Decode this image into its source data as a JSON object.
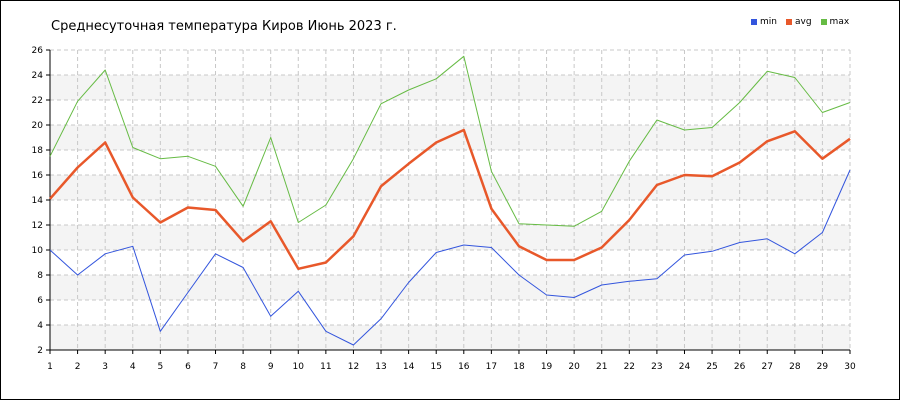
{
  "chart_data": {
    "type": "line",
    "title": "Среднесуточная температура Киров  Июнь 2023 г.",
    "xlabel": "",
    "ylabel": "",
    "ylim": [
      2,
      26
    ],
    "yticks": [
      2,
      4,
      6,
      8,
      10,
      12,
      14,
      16,
      18,
      20,
      22,
      24,
      26
    ],
    "x": [
      1,
      2,
      3,
      4,
      5,
      6,
      7,
      8,
      9,
      10,
      11,
      12,
      13,
      14,
      15,
      16,
      17,
      18,
      19,
      20,
      21,
      22,
      23,
      24,
      25,
      26,
      27,
      28,
      29,
      30
    ],
    "grid": true,
    "legend": "top-right",
    "series": [
      {
        "name": "min",
        "color": "#3355dd",
        "values": [
          10.0,
          8.0,
          9.7,
          10.3,
          3.5,
          6.6,
          9.7,
          8.6,
          4.7,
          6.7,
          3.5,
          2.4,
          4.5,
          7.4,
          9.8,
          10.4,
          10.2,
          8.0,
          6.4,
          6.2,
          7.2,
          7.5,
          7.7,
          9.6,
          9.9,
          10.6,
          10.9,
          9.7,
          11.4,
          16.4
        ]
      },
      {
        "name": "avg",
        "color": "#e8582a",
        "values": [
          14.1,
          16.6,
          18.6,
          14.2,
          12.2,
          13.4,
          13.2,
          10.7,
          12.3,
          8.5,
          9.0,
          11.1,
          15.1,
          16.9,
          18.6,
          19.6,
          13.3,
          10.3,
          9.2,
          9.2,
          10.2,
          12.4,
          15.2,
          16.0,
          15.9,
          17.0,
          18.7,
          19.5,
          17.3,
          18.9
        ]
      },
      {
        "name": "max",
        "color": "#66bb44",
        "values": [
          17.5,
          21.9,
          24.4,
          18.2,
          17.3,
          17.5,
          16.7,
          13.5,
          19.0,
          12.2,
          13.6,
          17.3,
          21.7,
          22.8,
          23.7,
          25.5,
          16.3,
          12.1,
          12.0,
          11.9,
          13.1,
          17.1,
          20.4,
          19.6,
          19.8,
          21.8,
          24.3,
          23.8,
          21.0,
          21.8
        ]
      }
    ]
  }
}
